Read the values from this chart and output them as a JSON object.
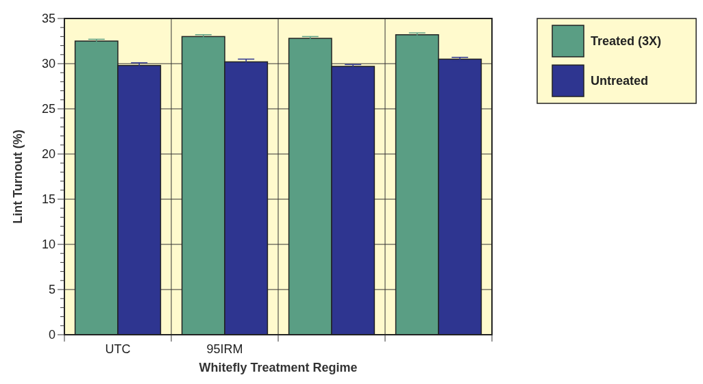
{
  "chart_data": {
    "type": "bar",
    "xlabel": "Whitefly Treatment Regime",
    "ylabel": "Lint Turnout (%)",
    "categories": [
      "UTC",
      "95IRM",
      null,
      null
    ],
    "series": [
      {
        "name": "Treated (3X)",
        "color": "#5a9e84",
        "values": [
          32.5,
          33.0,
          32.8,
          33.2
        ],
        "errors": [
          0.2,
          0.2,
          0.2,
          0.2
        ]
      },
      {
        "name": "Untreated",
        "color": "#2e3590",
        "values": [
          29.8,
          30.2,
          29.7,
          30.5
        ],
        "errors": [
          0.3,
          0.3,
          0.2,
          0.2
        ]
      }
    ],
    "ylim": [
      0,
      35
    ],
    "yticks": [
      0,
      {
        "value": 1,
        "label": null
      },
      {
        "value": 2,
        "label": null
      },
      {
        "value": 3,
        "label": null
      },
      {
        "value": 4,
        "label": null
      },
      5,
      {
        "value": 6,
        "label": null
      },
      {
        "value": 7,
        "label": null
      },
      {
        "value": 8,
        "label": null
      },
      {
        "value": 9,
        "label": null
      },
      10,
      {
        "value": 11,
        "label": null
      },
      {
        "value": 12,
        "label": null
      },
      {
        "value": 13,
        "label": null
      },
      {
        "value": 14,
        "label": null
      },
      15,
      {
        "value": 16,
        "label": null
      },
      {
        "value": 17,
        "label": null
      },
      {
        "value": 18,
        "label": null
      },
      {
        "value": 19,
        "label": null
      },
      20,
      {
        "value": 21,
        "label": null
      },
      {
        "value": 22,
        "label": null
      },
      {
        "value": 23,
        "label": null
      },
      {
        "value": 24,
        "label": null
      },
      25,
      {
        "value": 26,
        "label": null
      },
      {
        "value": 27,
        "label": null
      },
      {
        "value": 28,
        "label": null
      },
      {
        "value": 29,
        "label": null
      },
      30,
      {
        "value": 31,
        "label": null
      },
      {
        "value": 32,
        "label": null
      },
      {
        "value": 33,
        "label": null
      },
      {
        "value": 34,
        "label": null
      },
      35
    ],
    "grid": true,
    "legend": "top right"
  }
}
